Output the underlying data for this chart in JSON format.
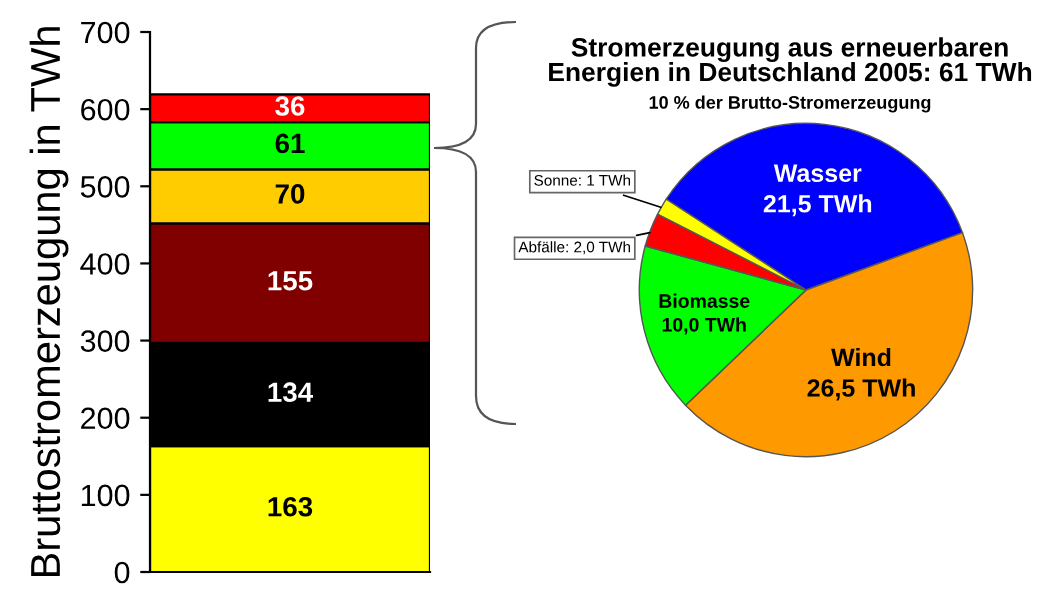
{
  "chart_data": [
    {
      "type": "bar",
      "stacked": true,
      "categories": [
        null
      ],
      "ylabel": "Bruttostromerzeugung in TWh",
      "ylim": [
        0,
        700
      ],
      "yticks": [
        0,
        100,
        200,
        300,
        400,
        500,
        600,
        700
      ],
      "grid": false,
      "data_labels": true,
      "series": [
        {
          "color": "#ffff00",
          "values": [
            163
          ]
        },
        {
          "color": "#000000",
          "values": [
            134
          ]
        },
        {
          "color": "#800000",
          "values": [
            155
          ]
        },
        {
          "color": "#ffcc00",
          "values": [
            70
          ]
        },
        {
          "color": "#00ff00",
          "values": [
            61
          ]
        },
        {
          "color": "#ff0000",
          "values": [
            36
          ]
        }
      ]
    },
    {
      "type": "pie",
      "title": "Stromerzeugung aus erneuerbaren\nEnergien in Deutschland 2005: 61 TWh",
      "subtitle": "10 % der Brutto-Stromerzeugung",
      "categories": [
        "Wasser",
        "Wind",
        "Biomasse",
        "Abfälle",
        "Sonne"
      ],
      "values": [
        21.5,
        26.5,
        10.0,
        2.0,
        1
      ],
      "value_labels": [
        "21,5 TWh",
        "26,5 TWh",
        "10,0 TWh",
        "2,0 TWh",
        "1 TWh"
      ],
      "colors": [
        "#0000ff",
        "#ff9900",
        "#00ff00",
        "#ff0000",
        "#ffff00"
      ]
    }
  ]
}
